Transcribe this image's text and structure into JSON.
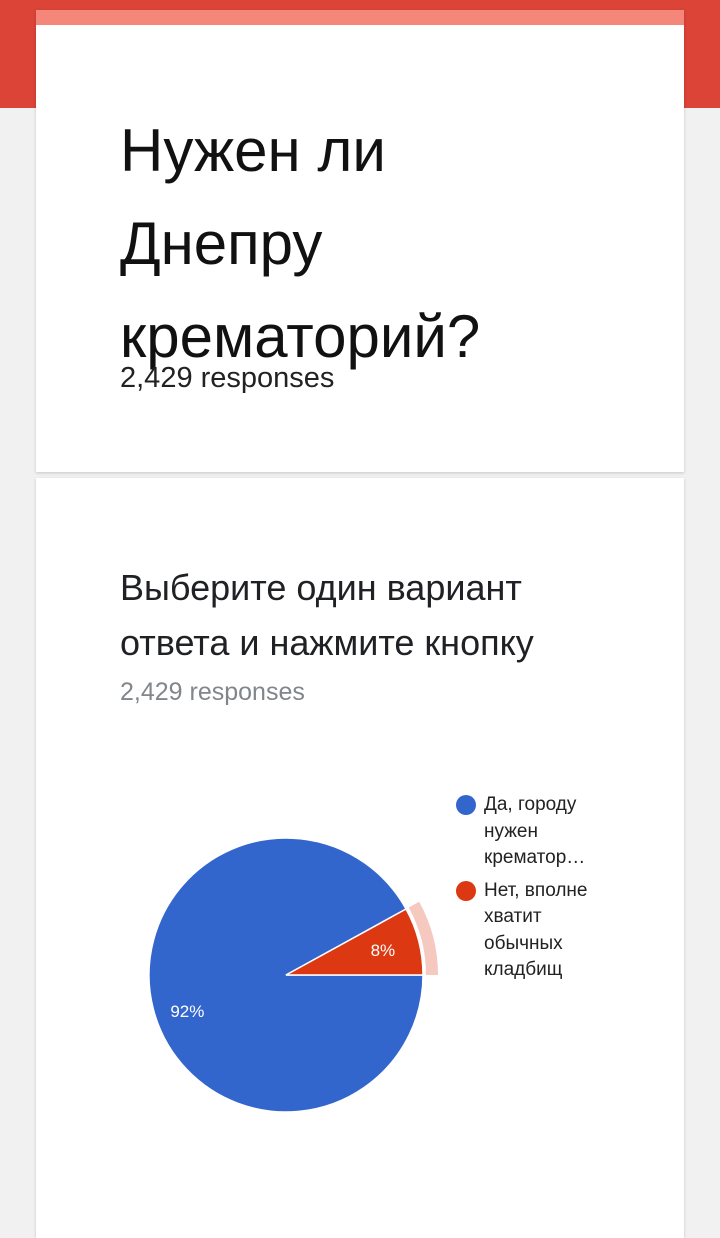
{
  "form": {
    "title": "Нужен ли Днепру крематорий?",
    "responses": "2,429 responses"
  },
  "question": {
    "title": "Выберите один вариант ответа и нажмите кнопку",
    "responses": "2,429 responses"
  },
  "colors": {
    "header_band": "#db4437",
    "header_accent": "#f5877a",
    "slice_yes": "#3366cc",
    "slice_no": "#dc3912",
    "slice_no_highlight": "#f5c9c0"
  },
  "chart_data": {
    "type": "pie",
    "categories": [
      "Да, городу нужен крематор…",
      "Нет, вполне хватит обычных кладбищ"
    ],
    "values": [
      92,
      8
    ],
    "data_labels": [
      "92%",
      "8%"
    ],
    "legend_labels": [
      [
        "Да, городу",
        "нужен",
        "крематор…"
      ],
      [
        "Нет, вполне",
        "хватит",
        "обычных",
        "кладбищ"
      ]
    ],
    "legend_position": "right"
  }
}
